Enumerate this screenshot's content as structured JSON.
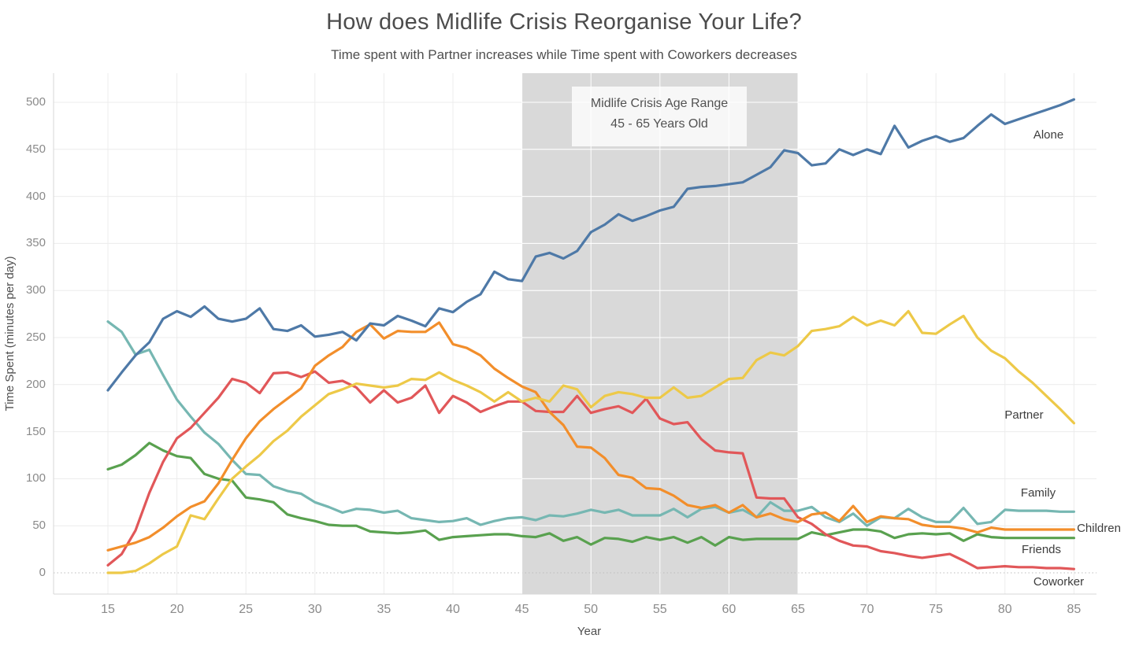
{
  "header": {
    "title": "How does Midlife Crisis Reorganise Your Life?",
    "subtitle": "Time spent with Partner increases while Time spent with Coworkers decreases"
  },
  "annotation": {
    "line1": "Midlife Crisis Age Range",
    "line2": "45 - 65 Years Old"
  },
  "axes": {
    "y_title": "Time Spent (minutes per day)",
    "x_title": "Year",
    "y_ticks": [
      0,
      50,
      100,
      150,
      200,
      250,
      300,
      350,
      400,
      450,
      500
    ],
    "x_ticks": [
      15,
      20,
      25,
      30,
      35,
      40,
      45,
      50,
      55,
      60,
      65,
      70,
      75,
      80,
      85
    ]
  },
  "colors": {
    "band": "#d9d9d9",
    "gridline": "#ececec",
    "gridline_on_band": "#ffffff",
    "axis_line": "#d7d7d7",
    "zero_line": "#bdbdbd"
  },
  "chart_data": {
    "type": "line",
    "title": "How does Midlife Crisis Reorganise Your Life?",
    "subtitle": "Time spent with Partner increases while Time spent with Coworkers decreases",
    "xlabel": "Year",
    "ylabel": "Time Spent (minutes per day)",
    "xlim": [
      15,
      85
    ],
    "ylim": [
      0,
      500
    ],
    "grid": true,
    "legend_position": "end-of-line-labels",
    "highlight_band": {
      "x_start": 45,
      "x_end": 65,
      "color": "#d9d9d9",
      "label": "Midlife Crisis Age Range 45 - 65 Years Old"
    },
    "x": [
      15,
      16,
      17,
      18,
      19,
      20,
      21,
      22,
      23,
      24,
      25,
      26,
      27,
      28,
      29,
      30,
      31,
      32,
      33,
      34,
      35,
      36,
      37,
      38,
      39,
      40,
      41,
      42,
      43,
      44,
      45,
      46,
      47,
      48,
      49,
      50,
      51,
      52,
      53,
      54,
      55,
      56,
      57,
      58,
      59,
      60,
      61,
      62,
      63,
      64,
      65,
      66,
      67,
      68,
      69,
      70,
      71,
      72,
      73,
      74,
      75,
      76,
      77,
      78,
      79,
      80,
      81,
      82,
      83,
      84,
      85
    ],
    "series": [
      {
        "name": "Alone",
        "color": "#4e79a7",
        "values": [
          194,
          213,
          231,
          245,
          270,
          278,
          272,
          283,
          270,
          267,
          270,
          281,
          259,
          257,
          263,
          251,
          253,
          256,
          247,
          265,
          263,
          273,
          268,
          262,
          281,
          277,
          288,
          296,
          320,
          312,
          310,
          336,
          340,
          334,
          342,
          362,
          370,
          381,
          374,
          379,
          385,
          389,
          408,
          410,
          411,
          413,
          415,
          423,
          431,
          449,
          446,
          433,
          435,
          450,
          444,
          450,
          445,
          475,
          452,
          459,
          464,
          458,
          462,
          475,
          487,
          477,
          482,
          487,
          492,
          497,
          503
        ]
      },
      {
        "name": "Partner",
        "color": "#edc948",
        "values": [
          0,
          0,
          2,
          10,
          20,
          28,
          61,
          57,
          79,
          100,
          113,
          125,
          140,
          151,
          166,
          178,
          190,
          195,
          201,
          199,
          197,
          199,
          206,
          205,
          213,
          205,
          199,
          192,
          182,
          192,
          182,
          186,
          182,
          199,
          195,
          176,
          188,
          192,
          190,
          186,
          186,
          197,
          186,
          188,
          197,
          206,
          207,
          226,
          234,
          231,
          241,
          257,
          259,
          262,
          272,
          263,
          268,
          263,
          278,
          255,
          254,
          264,
          273,
          250,
          236,
          228,
          214,
          202,
          188,
          174,
          159
        ]
      },
      {
        "name": "Family",
        "color": "#76b7b2",
        "values": [
          267,
          256,
          232,
          237,
          210,
          184,
          166,
          149,
          137,
          120,
          105,
          104,
          92,
          87,
          84,
          75,
          70,
          64,
          68,
          67,
          64,
          66,
          58,
          56,
          54,
          55,
          58,
          51,
          55,
          58,
          59,
          56,
          61,
          60,
          63,
          67,
          64,
          67,
          61,
          61,
          61,
          68,
          59,
          68,
          70,
          64,
          67,
          59,
          75,
          66,
          66,
          70,
          59,
          54,
          63,
          50,
          59,
          58,
          68,
          59,
          54,
          54,
          69,
          52,
          54,
          67,
          66,
          66,
          66,
          65,
          65
        ]
      },
      {
        "name": "Children",
        "color": "#f28e2b",
        "values": [
          24,
          28,
          32,
          38,
          48,
          60,
          70,
          76,
          95,
          120,
          143,
          161,
          174,
          185,
          196,
          220,
          231,
          240,
          256,
          264,
          249,
          257,
          256,
          256,
          266,
          243,
          239,
          231,
          217,
          207,
          198,
          192,
          171,
          157,
          134,
          133,
          122,
          104,
          101,
          90,
          89,
          82,
          72,
          69,
          72,
          64,
          72,
          59,
          63,
          57,
          54,
          62,
          64,
          55,
          71,
          54,
          60,
          58,
          57,
          51,
          49,
          49,
          47,
          43,
          48,
          46,
          46,
          46,
          46,
          46,
          46
        ]
      },
      {
        "name": "Friends",
        "color": "#59a14f",
        "values": [
          110,
          115,
          125,
          138,
          130,
          124,
          122,
          105,
          100,
          98,
          80,
          78,
          75,
          62,
          58,
          55,
          51,
          50,
          50,
          44,
          43,
          42,
          43,
          45,
          35,
          38,
          39,
          40,
          41,
          41,
          39,
          38,
          42,
          34,
          38,
          30,
          37,
          36,
          33,
          38,
          35,
          38,
          32,
          38,
          29,
          38,
          35,
          36,
          36,
          36,
          36,
          43,
          40,
          43,
          46,
          46,
          44,
          37,
          41,
          42,
          41,
          42,
          34,
          41,
          38,
          37,
          37,
          37,
          37,
          37,
          37
        ]
      },
      {
        "name": "Coworker",
        "color": "#e15759",
        "values": [
          8,
          20,
          45,
          85,
          118,
          143,
          154,
          170,
          186,
          206,
          202,
          191,
          212,
          213,
          208,
          214,
          202,
          204,
          197,
          181,
          194,
          181,
          186,
          199,
          170,
          188,
          181,
          171,
          177,
          182,
          182,
          172,
          171,
          171,
          188,
          170,
          174,
          177,
          170,
          185,
          164,
          158,
          160,
          142,
          130,
          128,
          127,
          80,
          79,
          79,
          59,
          52,
          41,
          34,
          29,
          28,
          23,
          21,
          18,
          16,
          18,
          20,
          13,
          5,
          6,
          7,
          6,
          6,
          5,
          5,
          4
        ]
      }
    ]
  }
}
